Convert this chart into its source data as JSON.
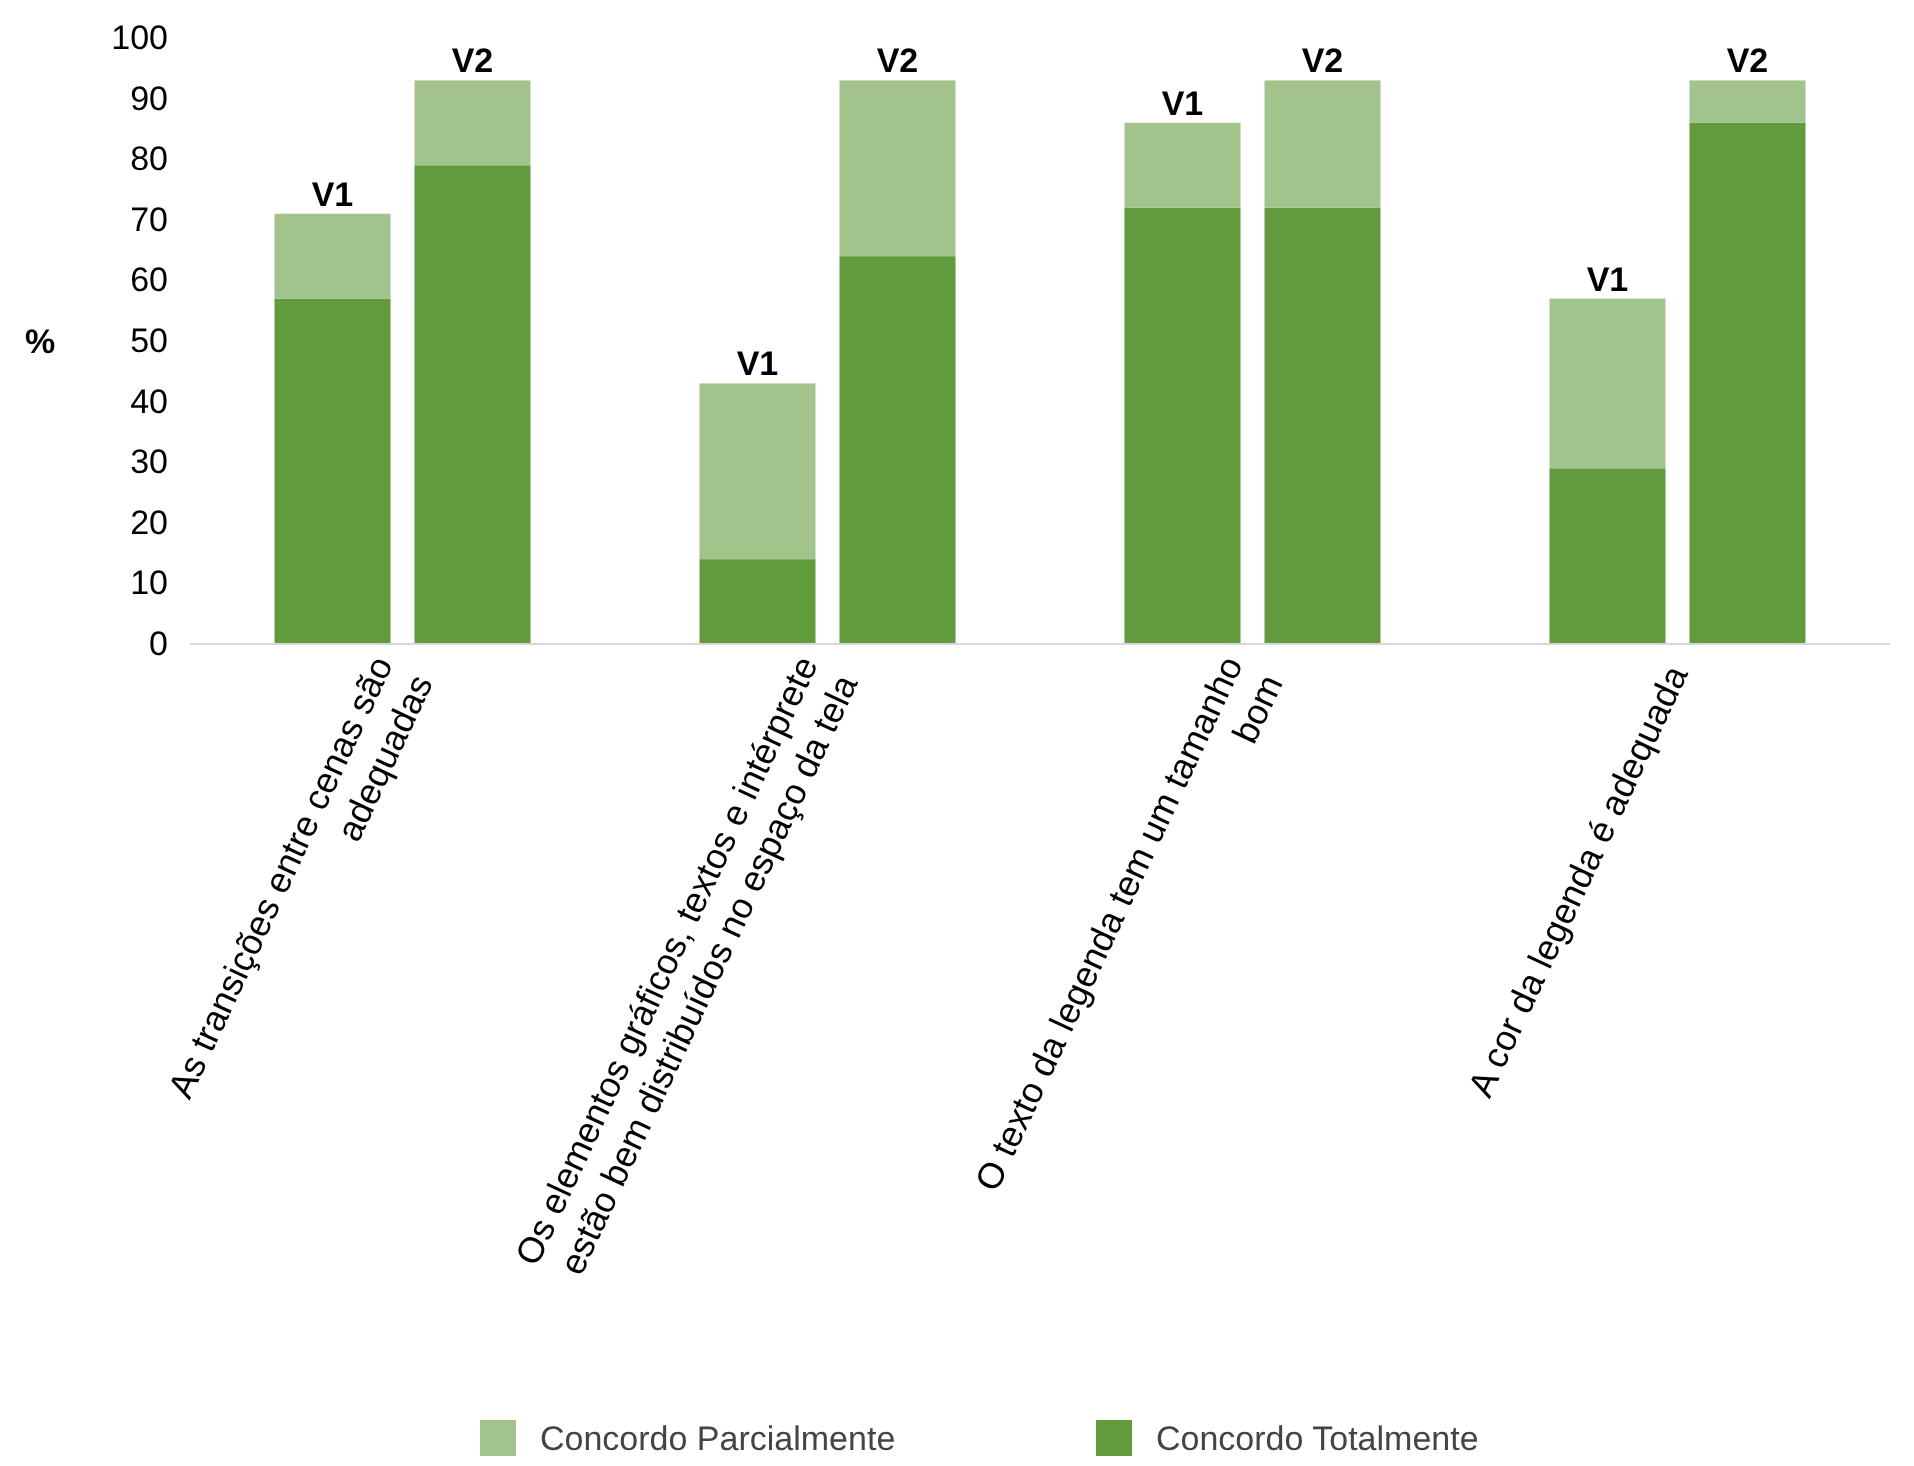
{
  "chart_data": {
    "type": "bar",
    "stacked": true,
    "ylabel": "%",
    "categories": [
      "V1",
      "V2",
      "V1",
      "V2",
      "V1",
      "V2",
      "V1",
      "V2"
    ],
    "series": [
      {
        "name": "Concordo Totalmente",
        "color": "#629a3e",
        "values": [
          57,
          79,
          14,
          64,
          72,
          72,
          29,
          86
        ]
      },
      {
        "name": "Concordo Parcialmente",
        "color": "#a2c48c",
        "values": [
          14,
          14,
          29,
          29,
          14,
          21,
          28,
          7
        ]
      }
    ],
    "ylim": [
      0,
      100
    ],
    "yticks": [
      0,
      10,
      20,
      30,
      40,
      50,
      60,
      70,
      80,
      90,
      100
    ],
    "legend": "bottom",
    "annotations": [
      "As transições entre cenas são\nadequadas",
      "Os elementos gráficos, textos e intérprete\nestão bem distribuídos no espaço da tela",
      "O texto da legenda tem um tamanho\nbom",
      "A cor da legenda é adequada"
    ]
  }
}
